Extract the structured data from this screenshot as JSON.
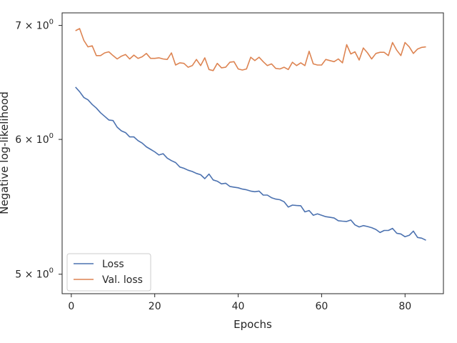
{
  "chart_data": {
    "type": "line",
    "xlabel": "Epochs",
    "ylabel": "Negative log-likelihood",
    "xlim": [
      -2.2,
      89.2
    ],
    "ylim": [
      4.87,
      7.12
    ],
    "yscale": "log",
    "grid": false,
    "legend_position": "lower-left",
    "x_ticks": [
      {
        "value": 0,
        "label": "0"
      },
      {
        "value": 20,
        "label": "20"
      },
      {
        "value": 40,
        "label": "40"
      },
      {
        "value": 60,
        "label": "60"
      },
      {
        "value": 80,
        "label": "80"
      }
    ],
    "y_ticks": [
      {
        "value": 5,
        "mantissa": "5",
        "base": "10",
        "exp": "0"
      },
      {
        "value": 6,
        "mantissa": "6",
        "base": "10",
        "exp": "0"
      },
      {
        "value": 7,
        "mantissa": "7",
        "base": "10",
        "exp": "0"
      }
    ],
    "series": [
      {
        "name": "Loss",
        "color": "#4c72b0",
        "x": [
          1,
          2,
          3,
          4,
          5,
          6,
          7,
          8,
          9,
          10,
          11,
          12,
          13,
          14,
          15,
          16,
          17,
          18,
          19,
          20,
          21,
          22,
          23,
          24,
          25,
          26,
          27,
          28,
          29,
          30,
          31,
          32,
          33,
          34,
          35,
          36,
          37,
          38,
          39,
          40,
          41,
          42,
          43,
          44,
          45,
          46,
          47,
          48,
          49,
          50,
          51,
          52,
          53,
          54,
          55,
          56,
          57,
          58,
          59,
          60,
          61,
          62,
          63,
          64,
          65,
          66,
          67,
          68,
          69,
          70,
          71,
          72,
          73,
          74,
          75,
          76,
          77,
          78,
          79,
          80,
          81,
          82,
          83,
          84,
          85
        ],
        "values": [
          6.44,
          6.4,
          6.35,
          6.33,
          6.29,
          6.26,
          6.22,
          6.19,
          6.16,
          6.155,
          6.1,
          6.07,
          6.055,
          6.02,
          6.02,
          5.99,
          5.97,
          5.94,
          5.92,
          5.9,
          5.875,
          5.885,
          5.85,
          5.83,
          5.815,
          5.78,
          5.77,
          5.755,
          5.745,
          5.73,
          5.72,
          5.69,
          5.725,
          5.68,
          5.67,
          5.65,
          5.655,
          5.63,
          5.625,
          5.62,
          5.61,
          5.605,
          5.595,
          5.59,
          5.595,
          5.565,
          5.565,
          5.545,
          5.535,
          5.53,
          5.515,
          5.475,
          5.49,
          5.487,
          5.485,
          5.44,
          5.45,
          5.415,
          5.425,
          5.415,
          5.405,
          5.4,
          5.395,
          5.375,
          5.372,
          5.37,
          5.38,
          5.345,
          5.33,
          5.34,
          5.333,
          5.325,
          5.312,
          5.29,
          5.305,
          5.305,
          5.32,
          5.285,
          5.28,
          5.26,
          5.27,
          5.3,
          5.255,
          5.25,
          5.235
        ]
      },
      {
        "name": "Val. loss",
        "color": "#dd8452",
        "x": [
          1,
          2,
          3,
          4,
          5,
          6,
          7,
          8,
          9,
          10,
          11,
          12,
          13,
          14,
          15,
          16,
          17,
          18,
          19,
          20,
          21,
          22,
          23,
          24,
          25,
          26,
          27,
          28,
          29,
          30,
          31,
          32,
          33,
          34,
          35,
          36,
          37,
          38,
          39,
          40,
          41,
          42,
          43,
          44,
          45,
          46,
          47,
          48,
          49,
          50,
          51,
          52,
          53,
          54,
          55,
          56,
          57,
          58,
          59,
          60,
          61,
          62,
          63,
          64,
          65,
          66,
          67,
          68,
          69,
          70,
          71,
          72,
          73,
          74,
          75,
          76,
          77,
          78,
          79,
          80,
          81,
          82,
          83,
          84,
          85
        ],
        "values": [
          6.95,
          6.97,
          6.86,
          6.8,
          6.81,
          6.72,
          6.72,
          6.745,
          6.755,
          6.72,
          6.69,
          6.715,
          6.73,
          6.69,
          6.725,
          6.695,
          6.71,
          6.74,
          6.695,
          6.695,
          6.7,
          6.69,
          6.685,
          6.745,
          6.635,
          6.655,
          6.65,
          6.615,
          6.63,
          6.685,
          6.63,
          6.7,
          6.595,
          6.585,
          6.65,
          6.61,
          6.615,
          6.66,
          6.665,
          6.6,
          6.59,
          6.6,
          6.705,
          6.675,
          6.705,
          6.665,
          6.63,
          6.645,
          6.605,
          6.6,
          6.615,
          6.595,
          6.66,
          6.63,
          6.655,
          6.63,
          6.76,
          6.645,
          6.635,
          6.635,
          6.685,
          6.675,
          6.665,
          6.69,
          6.655,
          6.82,
          6.735,
          6.755,
          6.68,
          6.79,
          6.745,
          6.69,
          6.74,
          6.75,
          6.75,
          6.72,
          6.84,
          6.77,
          6.72,
          6.84,
          6.8,
          6.74,
          6.78,
          6.795,
          6.8
        ]
      }
    ]
  }
}
